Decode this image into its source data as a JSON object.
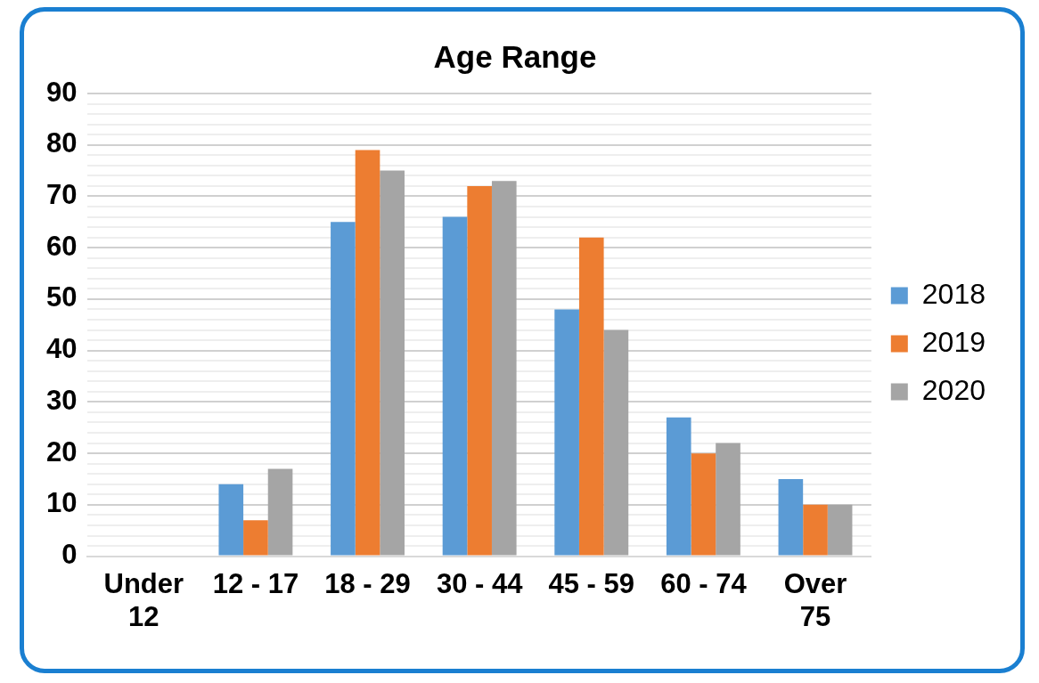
{
  "chart_data": {
    "type": "bar",
    "title": "Age Range",
    "categories": [
      "Under 12",
      "12 - 17",
      "18 - 29",
      "30 - 44",
      "45 - 59",
      "60 - 74",
      "Over 75"
    ],
    "series": [
      {
        "name": "2018",
        "color": "#5b9bd5",
        "values": [
          0,
          14,
          65,
          66,
          48,
          27,
          15
        ]
      },
      {
        "name": "2019",
        "color": "#ed7d31",
        "values": [
          0,
          7,
          79,
          72,
          62,
          20,
          10
        ]
      },
      {
        "name": "2020",
        "color": "#a5a5a5",
        "values": [
          0,
          17,
          75,
          73,
          44,
          22,
          10
        ]
      }
    ],
    "ylim": [
      0,
      90
    ],
    "yticks": [
      0,
      {
        "value": 2,
        "label": null
      },
      {
        "value": 4,
        "label": null
      },
      {
        "value": 6,
        "label": null
      },
      {
        "value": 8,
        "label": null
      },
      10,
      {
        "value": 12,
        "label": null
      },
      {
        "value": 14,
        "label": null
      },
      {
        "value": 16,
        "label": null
      },
      {
        "value": 18,
        "label": null
      },
      20,
      {
        "value": 22,
        "label": null
      },
      {
        "value": 24,
        "label": null
      },
      {
        "value": 26,
        "label": null
      },
      {
        "value": 28,
        "label": null
      },
      30,
      {
        "value": 32,
        "label": null
      },
      {
        "value": 34,
        "label": null
      },
      {
        "value": 36,
        "label": null
      },
      {
        "value": 38,
        "label": null
      },
      40,
      {
        "value": 42,
        "label": null
      },
      {
        "value": 44,
        "label": null
      },
      {
        "value": 46,
        "label": null
      },
      {
        "value": 48,
        "label": null
      },
      50,
      {
        "value": 52,
        "label": null
      },
      {
        "value": 54,
        "label": null
      },
      {
        "value": 56,
        "label": null
      },
      {
        "value": 58,
        "label": null
      },
      60,
      {
        "value": 62,
        "label": null
      },
      {
        "value": 64,
        "label": null
      },
      {
        "value": 66,
        "label": null
      },
      {
        "value": 68,
        "label": null
      },
      70,
      {
        "value": 72,
        "label": null
      },
      {
        "value": 74,
        "label": null
      },
      {
        "value": 76,
        "label": null
      },
      {
        "value": 78,
        "label": null
      },
      80,
      {
        "value": 82,
        "label": null
      },
      {
        "value": 84,
        "label": null
      },
      {
        "value": 86,
        "label": null
      },
      {
        "value": 88,
        "label": null
      },
      90
    ],
    "grid": "y",
    "legend": "right"
  }
}
